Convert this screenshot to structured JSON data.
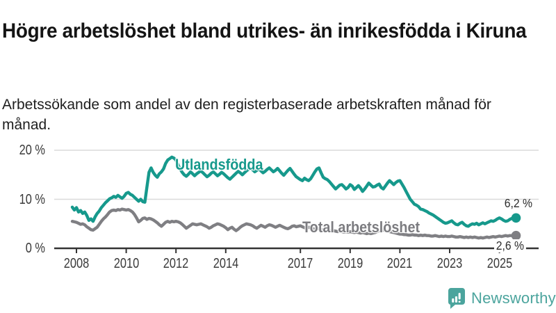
{
  "header": {
    "title": "Högre arbetslöshet bland utrikes- än inrikesfödda i Kiruna",
    "subtitle": "Arbetssökande som andel av den registerbaserade arbetskraften månad för månad."
  },
  "colors": {
    "series_foreign": "#16998c",
    "series_total": "#7f7f83",
    "series_total_label": "#7c7c80",
    "grid": "#dadada",
    "axis": "#333333",
    "axis_text": "#3a3a3a",
    "end_label_text": "#2d2d2d",
    "brand_teal": "#4ba49d"
  },
  "footer": {
    "brand": "Newsworthy",
    "logo_icon": "bar-chart-speech-bubble-icon"
  },
  "chart_data": {
    "type": "line",
    "title": "Högre arbetslöshet bland utrikes- än inrikesfödda i Kiruna",
    "subtitle": "Arbetssökande som andel av den registerbaserade arbetskraften månad för månad.",
    "unit": "%",
    "frequency": "monthly",
    "start_year": 2007,
    "start_month": 11,
    "grid": true,
    "legend_position": "inline-labels",
    "ylim": [
      0,
      21
    ],
    "y_ticks": [
      {
        "value": 0,
        "label": "0 %"
      },
      {
        "value": 10,
        "label": "10 %"
      },
      {
        "value": 20,
        "label": "20 %"
      }
    ],
    "x_ticks": [
      {
        "year": 2008,
        "label": "2008"
      },
      {
        "year": 2010,
        "label": "2010"
      },
      {
        "year": 2012,
        "label": "2012"
      },
      {
        "year": 2014,
        "label": "2014"
      },
      {
        "year": 2017,
        "label": "2017"
      },
      {
        "year": 2019,
        "label": "2019"
      },
      {
        "year": 2021,
        "label": "2021"
      },
      {
        "year": 2023,
        "label": "2023"
      },
      {
        "year": 2025,
        "label": "2025"
      }
    ],
    "series": [
      {
        "name": "Utlandsfödda",
        "color": "#16998c",
        "end_label": "6,2 %",
        "last_value": 6.2,
        "values": [
          8.4,
          7.8,
          8.3,
          7.4,
          7.7,
          7.1,
          7.4,
          6.7,
          5.7,
          6.0,
          5.5,
          6.4,
          7.1,
          7.6,
          8.3,
          8.8,
          9.3,
          9.7,
          10.1,
          10.3,
          10.6,
          10.4,
          10.8,
          10.5,
          10.2,
          10.6,
          11.2,
          11.4,
          11.0,
          10.8,
          10.4,
          10.0,
          9.6,
          10.0,
          9.5,
          9.4,
          12.5,
          15.5,
          16.4,
          15.5,
          14.9,
          14.5,
          15.2,
          15.6,
          16.2,
          17.3,
          18.0,
          18.3,
          18.6,
          18.4,
          18.0,
          17.0,
          16.2,
          15.5,
          15.0,
          14.7,
          15.1,
          15.6,
          15.2,
          14.8,
          15.2,
          15.5,
          15.8,
          15.4,
          15.0,
          14.6,
          14.9,
          15.3,
          15.6,
          15.2,
          14.8,
          15.1,
          15.5,
          15.2,
          14.8,
          14.4,
          14.1,
          14.5,
          14.9,
          15.3,
          15.7,
          15.4,
          15.0,
          15.4,
          15.8,
          16.1,
          16.3,
          16.0,
          15.6,
          15.9,
          16.2,
          15.8,
          15.4,
          15.7,
          16.1,
          16.4,
          16.0,
          15.6,
          15.9,
          16.3,
          15.8,
          15.3,
          14.9,
          15.4,
          15.9,
          16.3,
          15.7,
          15.1,
          14.6,
          14.3,
          14.0,
          13.8,
          14.3,
          14.0,
          13.8,
          14.2,
          14.9,
          15.6,
          16.2,
          16.4,
          15.4,
          14.5,
          14.2,
          14.0,
          13.6,
          13.1,
          12.6,
          12.1,
          12.5,
          12.9,
          13.0,
          12.6,
          12.1,
          12.4,
          13.0,
          12.7,
          12.0,
          12.4,
          12.8,
          12.3,
          11.6,
          12.1,
          12.7,
          13.3,
          12.9,
          12.5,
          12.6,
          12.9,
          13.1,
          12.4,
          12.1,
          12.7,
          13.3,
          13.8,
          13.4,
          13.0,
          13.4,
          13.7,
          13.8,
          13.1,
          12.4,
          11.6,
          10.8,
          10.0,
          9.5,
          9.0,
          8.8,
          8.5,
          8.0,
          7.9,
          7.7,
          7.5,
          7.2,
          7.0,
          6.8,
          6.5,
          6.2,
          5.9,
          5.6,
          5.3,
          5.1,
          5.2,
          5.4,
          5.6,
          5.2,
          4.9,
          4.8,
          5.1,
          5.3,
          4.9,
          4.6,
          4.5,
          4.8,
          5.0,
          4.9,
          5.1,
          4.8,
          5.0,
          5.2,
          5.0,
          5.2,
          5.4,
          5.6,
          5.5,
          5.7,
          6.0,
          6.2,
          6.0,
          5.7,
          5.5,
          5.6,
          5.9,
          6.1,
          6.1,
          6.2
        ]
      },
      {
        "name": "Total arbetslöshet",
        "color": "#7f7f83",
        "end_label": "2,6 %",
        "last_value": 2.6,
        "values": [
          5.5,
          5.4,
          5.3,
          5.1,
          4.9,
          5.0,
          4.8,
          4.4,
          4.1,
          3.8,
          3.7,
          4.0,
          4.3,
          4.9,
          5.5,
          6.0,
          6.4,
          6.9,
          7.4,
          7.7,
          7.8,
          7.7,
          7.9,
          7.8,
          8.0,
          7.9,
          7.8,
          7.9,
          7.7,
          7.4,
          6.9,
          6.2,
          5.4,
          5.7,
          6.1,
          6.2,
          5.9,
          6.1,
          6.0,
          5.8,
          5.5,
          5.2,
          4.8,
          4.5,
          4.9,
          5.3,
          5.5,
          5.3,
          5.5,
          5.4,
          5.5,
          5.4,
          5.2,
          4.9,
          4.5,
          4.1,
          4.4,
          4.7,
          5.0,
          4.9,
          4.8,
          4.9,
          5.0,
          4.8,
          4.6,
          4.4,
          4.1,
          4.3,
          4.6,
          4.8,
          5.0,
          4.9,
          4.7,
          4.5,
          4.2,
          3.8,
          4.1,
          4.3,
          3.9,
          3.6,
          3.9,
          4.3,
          4.6,
          4.8,
          5.0,
          4.9,
          4.8,
          4.6,
          4.3,
          4.1,
          4.4,
          4.7,
          4.5,
          4.3,
          4.6,
          4.8,
          4.7,
          4.5,
          4.3,
          4.5,
          4.7,
          4.5,
          4.3,
          4.1,
          4.0,
          4.2,
          4.5,
          4.6,
          4.4,
          4.5,
          4.6,
          4.4,
          4.2,
          4.1,
          4.3,
          4.2,
          4.0,
          3.9,
          4.1,
          4.0,
          3.8,
          3.7,
          3.8,
          3.7,
          3.6,
          3.5,
          3.6,
          3.5,
          3.4,
          3.5,
          3.4,
          3.3,
          3.4,
          3.3,
          3.4,
          3.3,
          3.2,
          3.3,
          3.2,
          3.1,
          3.2,
          3.1,
          3.0,
          3.1,
          3.0,
          3.1,
          3.2,
          3.4,
          3.6,
          3.8,
          3.7,
          3.6,
          3.5,
          3.4,
          3.3,
          3.2,
          3.1,
          3.0,
          2.9,
          2.9,
          2.8,
          2.8,
          2.7,
          2.7,
          2.8,
          2.7,
          2.7,
          2.6,
          2.7,
          2.6,
          2.7,
          2.6,
          2.6,
          2.5,
          2.5,
          2.6,
          2.5,
          2.4,
          2.5,
          2.4,
          2.5,
          2.4,
          2.4,
          2.5,
          2.4,
          2.3,
          2.3,
          2.4,
          2.3,
          2.2,
          2.3,
          2.2,
          2.3,
          2.2,
          2.3,
          2.2,
          2.1,
          2.2,
          2.1,
          2.2,
          2.3,
          2.2,
          2.3,
          2.4,
          2.3,
          2.4,
          2.5,
          2.4,
          2.5,
          2.6,
          2.5,
          2.6,
          2.6,
          2.5,
          2.6
        ]
      }
    ]
  }
}
